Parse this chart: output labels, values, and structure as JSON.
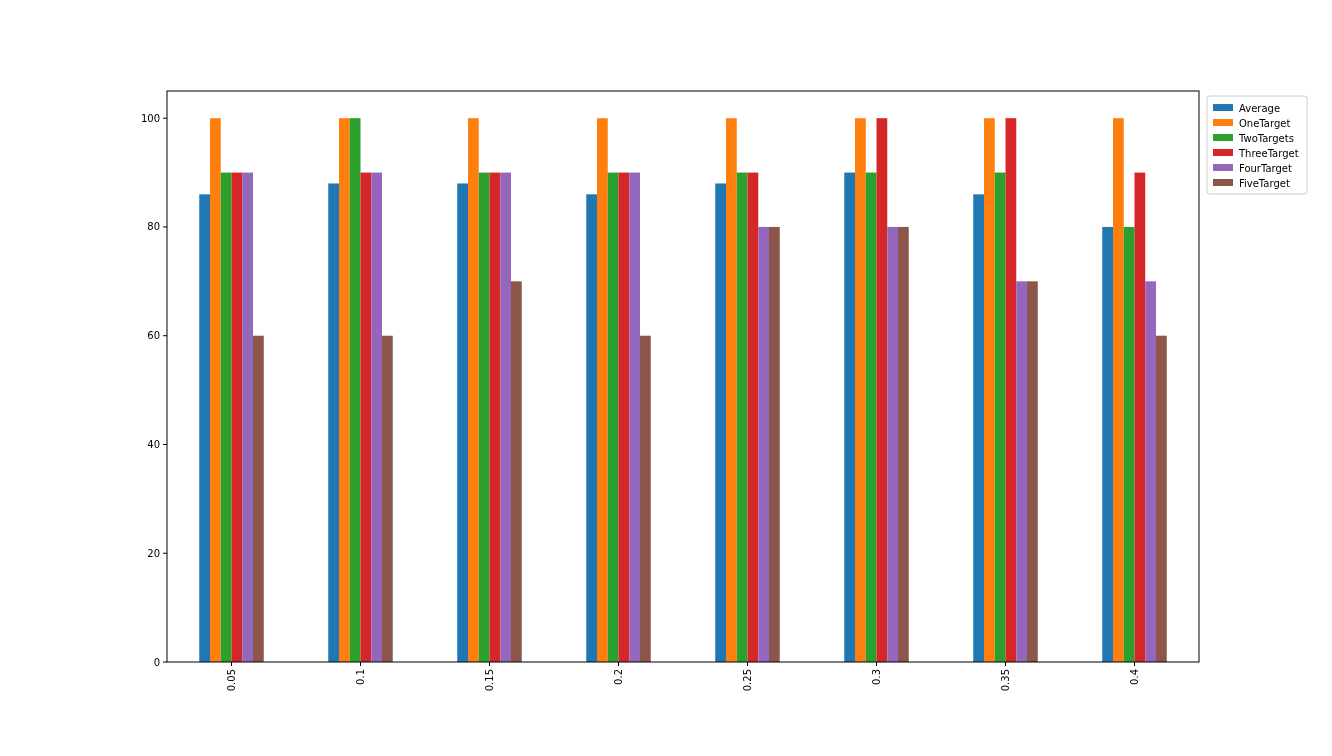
{
  "chart_data": {
    "type": "bar",
    "categories": [
      "0.05",
      "0.1",
      "0.15",
      "0.2",
      "0.25",
      "0.3",
      "0.35",
      "0.4"
    ],
    "series": [
      {
        "name": "Average",
        "color": "#1f77b4",
        "values": [
          86,
          88,
          88,
          86,
          88,
          90,
          86,
          80
        ]
      },
      {
        "name": "OneTarget",
        "color": "#ff7f0e",
        "values": [
          100,
          100,
          100,
          100,
          100,
          100,
          100,
          100
        ]
      },
      {
        "name": "TwoTargets",
        "color": "#2ca02c",
        "values": [
          90,
          100,
          90,
          90,
          90,
          90,
          90,
          80
        ]
      },
      {
        "name": "ThreeTarget",
        "color": "#d62728",
        "values": [
          90,
          90,
          90,
          90,
          90,
          100,
          100,
          90
        ]
      },
      {
        "name": "FourTarget",
        "color": "#9467bd",
        "values": [
          90,
          90,
          90,
          90,
          80,
          80,
          70,
          70
        ]
      },
      {
        "name": "FiveTarget",
        "color": "#8c564b",
        "values": [
          60,
          60,
          70,
          60,
          80,
          80,
          70,
          60
        ]
      }
    ],
    "ylim": [
      0,
      105
    ],
    "yticks": [
      0,
      20,
      40,
      60,
      80,
      100
    ],
    "grid": false,
    "legend": "right"
  }
}
